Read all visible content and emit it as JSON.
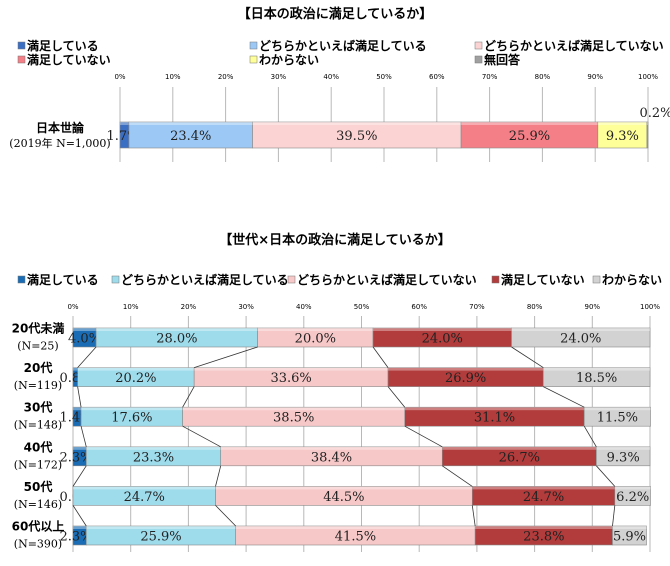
{
  "chart_data": [
    {
      "type": "bar",
      "orientation": "horizontal-stacked-100",
      "title": "【日本の政治に満足しているか】",
      "xlim": [
        0,
        100
      ],
      "ticks": [
        "0%",
        "10%",
        "20%",
        "30%",
        "40%",
        "50%",
        "60%",
        "70%",
        "80%",
        "90%",
        "100%"
      ],
      "legend_position": "top",
      "grid": true,
      "categories": [
        {
          "label": "日本世論",
          "sub": "(2019年 N=1,000)"
        }
      ],
      "series": [
        {
          "name": "満足している",
          "color": "#3a6fc4",
          "values": [
            1.7
          ]
        },
        {
          "name": "どちらかといえば満足している",
          "color": "#9cc8f5",
          "values": [
            23.4
          ]
        },
        {
          "name": "どちらかといえば満足していない",
          "color": "#fcd3d3",
          "values": [
            39.5
          ]
        },
        {
          "name": "満足していない",
          "color": "#f57f86",
          "values": [
            25.9
          ]
        },
        {
          "name": "わからない",
          "color": "#ffff99",
          "values": [
            9.3
          ]
        },
        {
          "name": "無回答",
          "color": "#a0a0a0",
          "values": [
            0.2
          ]
        }
      ],
      "data_labels": [
        [
          "1.7%",
          "23.4%",
          "39.5%",
          "25.9%",
          "9.3%",
          "0.2%"
        ]
      ]
    },
    {
      "type": "bar",
      "orientation": "horizontal-stacked-100",
      "title": "【世代×日本の政治に満足しているか】",
      "xlim": [
        0,
        100
      ],
      "ticks": [
        "0%",
        "10%",
        "20%",
        "30%",
        "40%",
        "50%",
        "60%",
        "70%",
        "80%",
        "90%",
        "100%"
      ],
      "legend_position": "top",
      "grid": true,
      "categories": [
        {
          "label": "20代未満",
          "sub": "(N=25)"
        },
        {
          "label": "20代",
          "sub": "(N=119)"
        },
        {
          "label": "30代",
          "sub": "(N=148)"
        },
        {
          "label": "40代",
          "sub": "(N=172)"
        },
        {
          "label": "50代",
          "sub": "(N=146)"
        },
        {
          "label": "60代以上",
          "sub": "(N=390)"
        }
      ],
      "series": [
        {
          "name": "満足している",
          "color": "#1a6db5",
          "values": [
            4.0,
            0.8,
            1.4,
            2.3,
            0.0,
            2.3
          ]
        },
        {
          "name": "どちらかといえば満足している",
          "color": "#9edcec",
          "values": [
            28.0,
            20.2,
            17.6,
            23.3,
            24.7,
            25.9
          ]
        },
        {
          "name": "どちらかといえば満足していない",
          "color": "#f7c8c8",
          "values": [
            20.0,
            33.6,
            38.5,
            38.4,
            44.5,
            41.5
          ]
        },
        {
          "name": "満足していない",
          "color": "#b23b3b",
          "values": [
            24.0,
            26.9,
            31.1,
            26.7,
            24.7,
            23.8
          ]
        },
        {
          "name": "わからない",
          "color": "#d2d2d2",
          "values": [
            24.0,
            18.5,
            11.5,
            9.3,
            6.2,
            5.9
          ]
        }
      ]
    }
  ]
}
